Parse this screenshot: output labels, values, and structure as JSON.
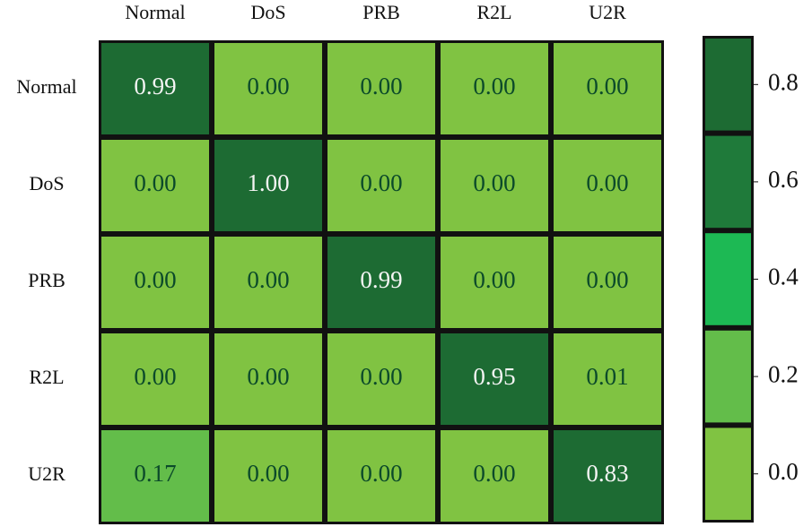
{
  "chart_data": {
    "type": "heatmap",
    "x_categories": [
      "Normal",
      "DoS",
      "PRB",
      "R2L",
      "U2R"
    ],
    "y_categories": [
      "Normal",
      "DoS",
      "PRB",
      "R2L",
      "U2R"
    ],
    "values": [
      [
        0.99,
        0,
        0,
        0,
        0
      ],
      [
        0,
        1,
        0,
        0,
        0
      ],
      [
        0,
        0,
        0.99,
        0,
        0
      ],
      [
        0,
        0,
        0,
        0.95,
        0.01
      ],
      [
        0.17,
        0,
        0,
        0,
        0.83
      ]
    ],
    "value_labels": [
      [
        "0.99",
        "0.00",
        "0.00",
        "0.00",
        "0.00"
      ],
      [
        "0.00",
        "1.00",
        "0.00",
        "0.00",
        "0.00"
      ],
      [
        "0.00",
        "0.00",
        "0.99",
        "0.00",
        "0.00"
      ],
      [
        "0.00",
        "0.00",
        "0.00",
        "0.95",
        "0.01"
      ],
      [
        "0.17",
        "0.00",
        "0.00",
        "0.00",
        "0.83"
      ]
    ],
    "colorbar": {
      "colors": [
        "#80c342",
        "#63bd4a",
        "#1db954",
        "#1f7a3a",
        "#1d6b33"
      ],
      "lim": [
        -0.1,
        0.9
      ],
      "ticks": [
        {
          "value": 0,
          "label": "0.0"
        },
        {
          "value": 0.2,
          "label": "0.2"
        },
        {
          "value": 0.4,
          "label": "0.4"
        },
        {
          "value": 0.6,
          "label": "0.6"
        },
        {
          "value": 0.8,
          "label": "0.8"
        }
      ]
    }
  }
}
